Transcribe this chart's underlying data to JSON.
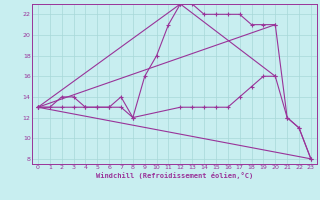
{
  "bg_color": "#c8eef0",
  "line_color": "#993399",
  "grid_color": "#a8d8d8",
  "xlabel": "Windchill (Refroidissement éolien,°C)",
  "xlim": [
    -0.5,
    23.5
  ],
  "ylim": [
    7.5,
    23.0
  ],
  "xticks": [
    0,
    1,
    2,
    3,
    4,
    5,
    6,
    7,
    8,
    9,
    10,
    11,
    12,
    13,
    14,
    15,
    16,
    17,
    18,
    19,
    20,
    21,
    22,
    23
  ],
  "yticks": [
    8,
    10,
    12,
    14,
    16,
    18,
    20,
    22
  ],
  "line1_x": [
    0,
    1,
    2,
    3,
    4,
    5,
    6,
    7,
    8,
    9,
    10,
    11,
    12,
    13,
    14,
    15,
    16,
    17,
    18,
    19,
    20
  ],
  "line1_y": [
    13,
    13,
    14,
    14,
    13,
    13,
    13,
    13,
    12,
    16,
    18,
    21,
    23,
    23,
    22,
    22,
    22,
    22,
    21,
    21,
    21
  ],
  "line2_x": [
    0,
    2,
    3,
    4,
    5,
    6,
    7,
    8,
    12,
    13,
    14,
    15,
    16,
    17,
    18,
    19,
    20
  ],
  "line2_y": [
    13,
    13,
    13,
    13,
    13,
    13,
    14,
    12,
    13,
    13,
    13,
    13,
    13,
    14,
    15,
    16,
    16
  ],
  "line3_x": [
    0,
    20,
    21,
    22,
    23
  ],
  "line3_y": [
    13,
    21,
    12,
    11,
    8
  ],
  "line4_x": [
    0,
    12,
    20,
    21,
    22,
    23
  ],
  "line4_y": [
    13,
    23,
    16,
    12,
    11,
    8
  ],
  "line5_x": [
    0,
    23
  ],
  "line5_y": [
    13,
    8
  ]
}
